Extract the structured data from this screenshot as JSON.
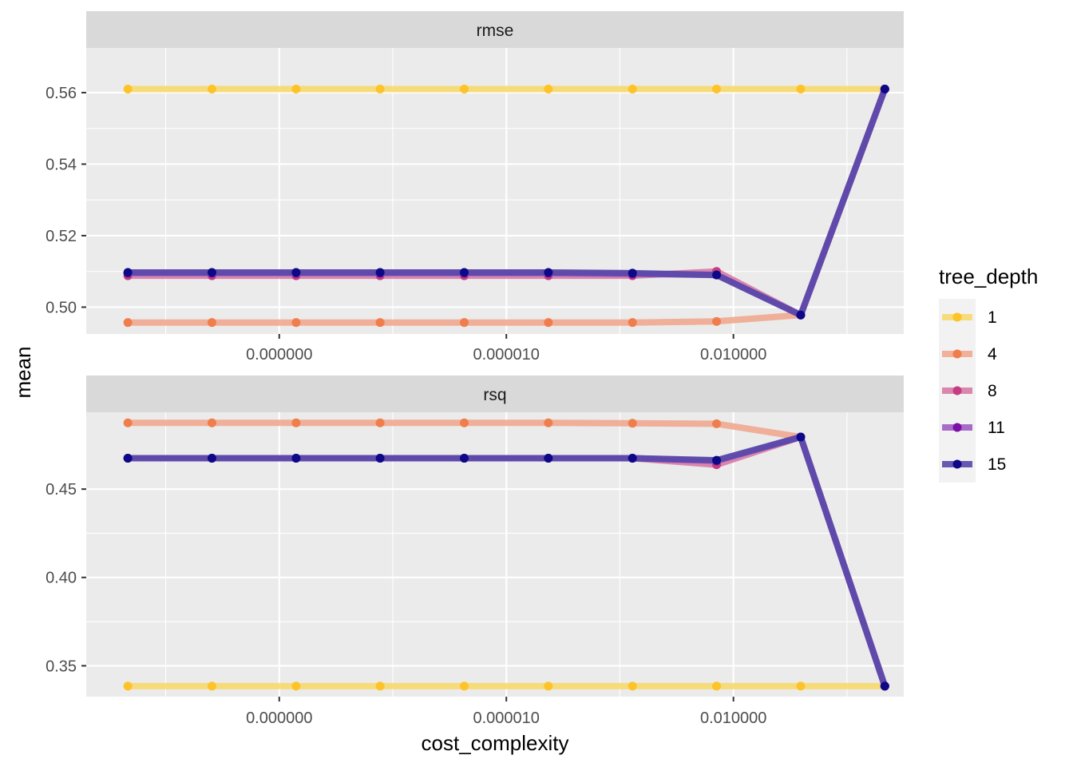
{
  "colors": {
    "panel_bg": "#EBEBEB",
    "strip_bg": "#D9D9D9",
    "grid": "#FFFFFF",
    "axis_text": "#4D4D4D",
    "title_text": "#000000"
  },
  "chart_data": {
    "type": "line",
    "xlabel": "cost_complexity",
    "ylabel": "mean",
    "x_scale": "log10",
    "xlim_log10": [
      -10.55,
      0.25
    ],
    "x_tick_values": [
      1e-08,
      1e-05,
      0.01
    ],
    "x_tick_labels": [
      "0.000000",
      "0.000010",
      "0.010000"
    ],
    "x": [
      1e-10,
      1.29e-09,
      1.67e-08,
      2.15e-07,
      2.78e-06,
      3.59e-05,
      0.000464,
      0.00599,
      0.0774,
      1.0
    ],
    "legend": {
      "title": "tree_depth",
      "position": "right",
      "entries": [
        {
          "label": "1",
          "line_color": "#F7D96E",
          "point_color": "#FDC328"
        },
        {
          "label": "4",
          "line_color": "#EFA98F",
          "point_color": "#F07E4C"
        },
        {
          "label": "8",
          "line_color": "#D87AA6",
          "point_color": "#C33D80"
        },
        {
          "label": "11",
          "line_color": "#A05CC3",
          "point_color": "#7D0FA6"
        },
        {
          "label": "15",
          "line_color": "#5848A8",
          "point_color": "#0D0887"
        }
      ]
    },
    "panels": [
      {
        "strip": "rmse",
        "ylim": [
          0.4925,
          0.5725
        ],
        "y_ticks": [
          0.5,
          0.52,
          0.54,
          0.56
        ],
        "y_tick_labels": [
          "0.50",
          "0.52",
          "0.54",
          "0.56"
        ],
        "series": [
          {
            "name": "1",
            "values": [
              0.561,
              0.561,
              0.561,
              0.561,
              0.561,
              0.561,
              0.561,
              0.561,
              0.561,
              0.561
            ]
          },
          {
            "name": "4",
            "values": [
              0.4957,
              0.4957,
              0.4957,
              0.4957,
              0.4957,
              0.4957,
              0.4957,
              0.496,
              0.4978,
              0.561
            ]
          },
          {
            "name": "8",
            "values": [
              0.5088,
              0.5088,
              0.5088,
              0.5088,
              0.5088,
              0.5088,
              0.5088,
              0.51,
              0.4978,
              0.561
            ]
          },
          {
            "name": "11",
            "values": [
              0.5095,
              0.5095,
              0.5095,
              0.5095,
              0.5095,
              0.5095,
              0.5093,
              0.509,
              0.4978,
              0.561
            ]
          },
          {
            "name": "15",
            "values": [
              0.5097,
              0.5097,
              0.5097,
              0.5097,
              0.5097,
              0.5097,
              0.5095,
              0.509,
              0.4978,
              0.561
            ]
          }
        ]
      },
      {
        "strip": "rsq",
        "ylim": [
          0.3325,
          0.4935
        ],
        "y_ticks": [
          0.35,
          0.4,
          0.45
        ],
        "y_tick_labels": [
          "0.35",
          "0.40",
          "0.45"
        ],
        "series": [
          {
            "name": "1",
            "values": [
              0.3385,
              0.3385,
              0.3385,
              0.3385,
              0.3385,
              0.3385,
              0.3385,
              0.3385,
              0.3385,
              0.3385
            ]
          },
          {
            "name": "4",
            "values": [
              0.4875,
              0.4875,
              0.4875,
              0.4875,
              0.4875,
              0.4875,
              0.4873,
              0.487,
              0.4795,
              0.3385
            ]
          },
          {
            "name": "8",
            "values": [
              0.4675,
              0.4675,
              0.4675,
              0.4675,
              0.4675,
              0.4675,
              0.4675,
              0.4638,
              0.4795,
              0.3385
            ]
          },
          {
            "name": "11",
            "values": [
              0.4675,
              0.4675,
              0.4675,
              0.4675,
              0.4675,
              0.4675,
              0.4675,
              0.466,
              0.4795,
              0.3385
            ]
          },
          {
            "name": "15",
            "values": [
              0.4675,
              0.4675,
              0.4675,
              0.4675,
              0.4675,
              0.4675,
              0.4675,
              0.4663,
              0.4795,
              0.3385
            ]
          }
        ]
      }
    ]
  }
}
